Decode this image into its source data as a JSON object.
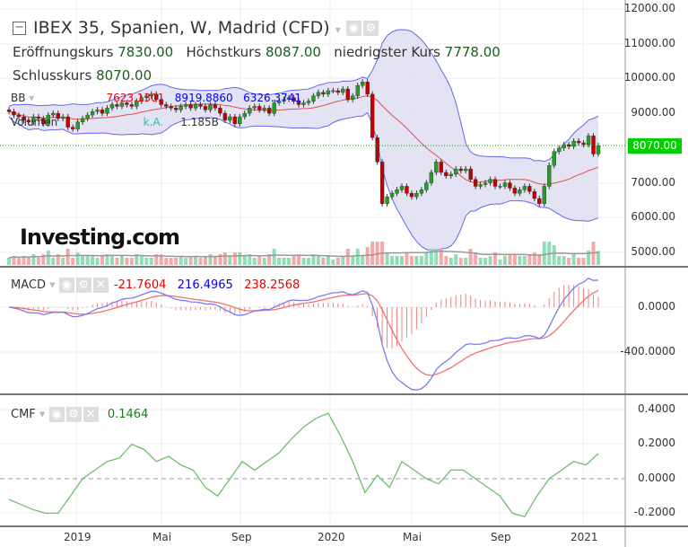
{
  "header": {
    "title": "IBEX 35, Spanien, W, Madrid (CFD)",
    "open_label": "Eröffnungskurs",
    "open": "7830.00",
    "high_label": "Höchstkurs",
    "high": "8087.00",
    "low_label": "niedrigster Kurs",
    "low": "7778.00",
    "close_label": "Schlusskurs",
    "close": "8070.00"
  },
  "bb": {
    "label": "BB",
    "mid": "7623.1301",
    "upper": "8919.8860",
    "lower": "6326.3741"
  },
  "volume": {
    "label": "Volumen",
    "ka": "k.A.",
    "value": "1.185B"
  },
  "macd": {
    "label": "MACD",
    "hist": "-21.7604",
    "macd": "216.4965",
    "signal": "238.2568"
  },
  "cmf": {
    "label": "CMF",
    "value": "0.1464"
  },
  "logo": "Investing.com",
  "price_tag": "8070.00",
  "axes": {
    "price": [
      "12000.00",
      "11000.00",
      "10000.00",
      "9000.00",
      "8000.00",
      "7000.00",
      "6000.00",
      "5000.00"
    ],
    "macd": [
      "0.0000",
      "-400.0000"
    ],
    "cmf": [
      "0.4000",
      "0.2000",
      "0.0000",
      "-0.2000"
    ],
    "x": [
      "2019",
      "Mai",
      "Sep",
      "2020",
      "Mai",
      "Sep",
      "2021"
    ]
  },
  "colors": {
    "up": "#22a022",
    "down": "#c00000",
    "band": "#6666ee",
    "mid": "#e05050",
    "cmf": "#6cbf6c"
  },
  "chart_data": {
    "type": "candlestick",
    "closes": [
      9050,
      8950,
      8900,
      8800,
      8750,
      8900,
      8850,
      8700,
      8950,
      9000,
      8850,
      8900,
      8600,
      8550,
      8750,
      8850,
      8950,
      9050,
      9100,
      9000,
      9150,
      9250,
      9200,
      9300,
      9250,
      9200,
      9350,
      9450,
      9500,
      9550,
      9400,
      9250,
      9200,
      9150,
      9100,
      9200,
      9250,
      9150,
      9250,
      9200,
      9100,
      9250,
      9150,
      9000,
      8800,
      8900,
      8700,
      8900,
      9000,
      9150,
      9200,
      9100,
      9150,
      9000,
      9300,
      9350,
      9400,
      9450,
      9350,
      9250,
      9300,
      9350,
      9500,
      9600,
      9550,
      9650,
      9650,
      9600,
      9700,
      9400,
      9500,
      9800,
      9900,
      9550,
      8300,
      7600,
      6400,
      6600,
      6700,
      6800,
      6900,
      6700,
      6600,
      6700,
      6800,
      7000,
      7300,
      7600,
      7300,
      7200,
      7250,
      7400,
      7350,
      7400,
      7100,
      6900,
      6950,
      7000,
      7100,
      6900,
      6900,
      7000,
      6850,
      6700,
      6800,
      6900,
      6750,
      6550,
      6400,
      6900,
      7500,
      7900,
      8000,
      8100,
      8050,
      8200,
      8150,
      8100,
      8350,
      7830,
      8070
    ],
    "cmf": [
      -0.12,
      -0.15,
      -0.18,
      -0.2,
      -0.2,
      -0.1,
      0,
      0.05,
      0.1,
      0.12,
      0.2,
      0.17,
      0.1,
      0.13,
      0.08,
      0.05,
      -0.05,
      -0.1,
      0,
      0.1,
      0.05,
      0.1,
      0.15,
      0.23,
      0.3,
      0.35,
      0.38,
      0.25,
      0.1,
      -0.08,
      0.02,
      -0.05,
      0.1,
      0.05,
      0,
      -0.03,
      0.05,
      0.05,
      0,
      -0.05,
      -0.1,
      -0.2,
      -0.22,
      -0.1,
      0,
      0.05,
      0.1,
      0.08,
      0.146
    ]
  }
}
